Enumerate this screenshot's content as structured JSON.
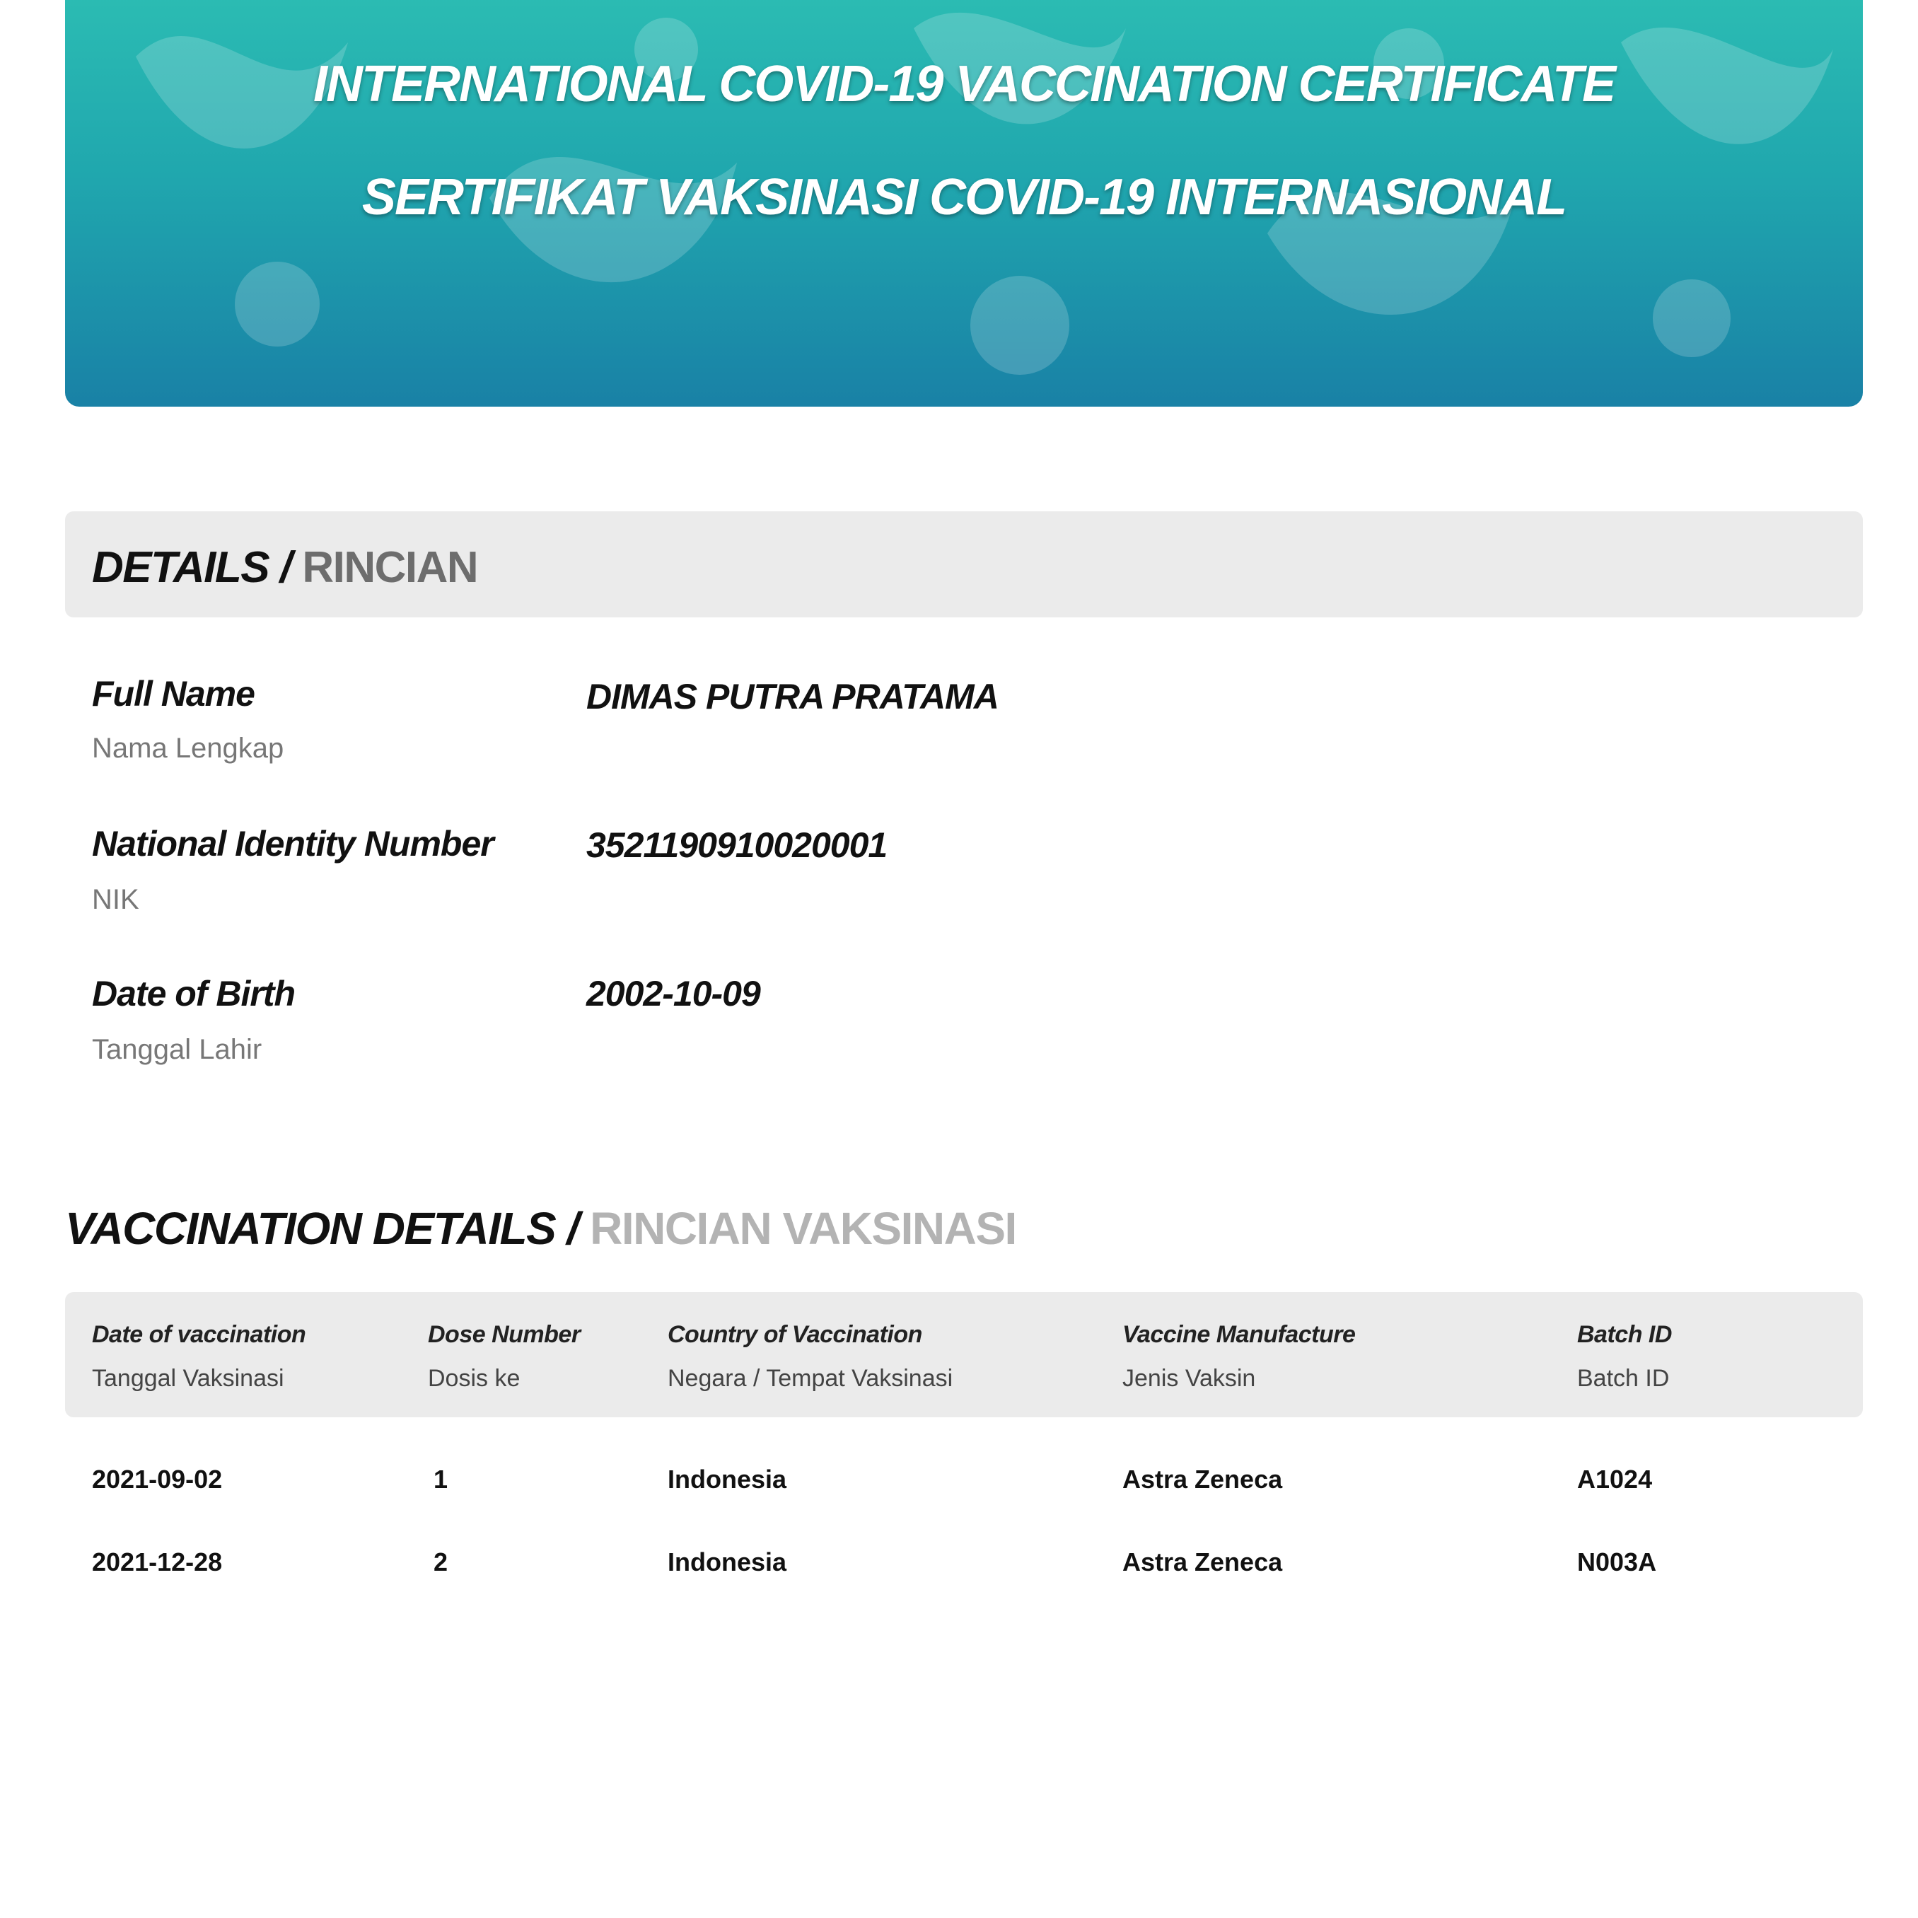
{
  "banner": {
    "title_en": "INTERNATIONAL COVID-19 VACCINATION CERTIFICATE",
    "title_id": "SERTIFIKAT VAKSINASI COVID-19 INTERNASIONAL",
    "gradient_top": "#2cbdb3",
    "gradient_bottom": "#1981a6"
  },
  "details": {
    "heading_en": "DETAILS /",
    "heading_id": "RINCIAN",
    "fields": [
      {
        "label": "Full Name",
        "sublabel": "Nama Lengkap",
        "value": "DIMAS PUTRA PRATAMA"
      },
      {
        "label": "National Identity Number",
        "sublabel": "NIK",
        "value": "3521190910020001"
      },
      {
        "label": "Date of Birth",
        "sublabel": "Tanggal Lahir",
        "value": "2002-10-09"
      }
    ]
  },
  "vaccination": {
    "heading_en": "VACCINATION DETAILS /",
    "heading_id": "RINCIAN VAKSINASI",
    "columns": [
      {
        "label": "Date of vaccination",
        "sublabel": "Tanggal Vaksinasi"
      },
      {
        "label": "Dose Number",
        "sublabel": "Dosis ke"
      },
      {
        "label": "Country of Vaccination",
        "sublabel": "Negara / Tempat Vaksinasi"
      },
      {
        "label": "Vaccine Manufacture",
        "sublabel": "Jenis Vaksin"
      },
      {
        "label": "Batch ID",
        "sublabel": "Batch ID"
      }
    ],
    "rows": [
      [
        "2021-09-02",
        "1",
        "Indonesia",
        "Astra Zeneca",
        "A1024"
      ],
      [
        "2021-12-28",
        "2",
        "Indonesia",
        "Astra Zeneca",
        "N003A"
      ]
    ]
  }
}
